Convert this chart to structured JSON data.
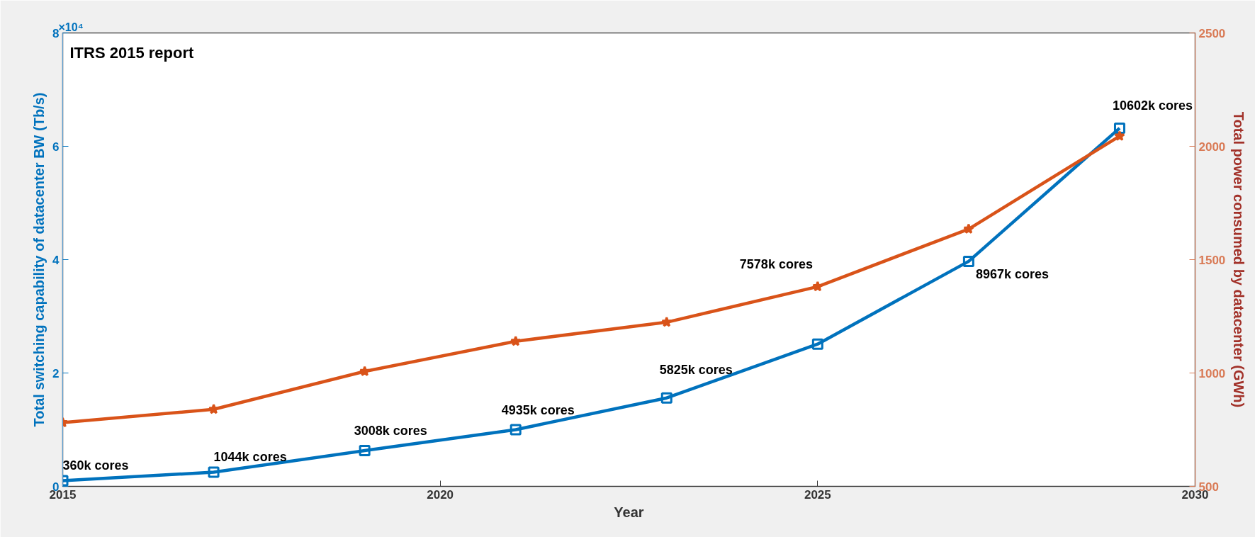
{
  "chart_data": {
    "type": "line",
    "title": "ITRS 2015 report",
    "xlabel": "Year",
    "ylabel": "Total switching capability of datacenter BW (Tb/s)",
    "y2label": "Total power consumed by datacenter (GWh)",
    "x": [
      2015,
      2017,
      2019,
      2021,
      2023,
      2025,
      2027,
      2029
    ],
    "xlim": [
      2015,
      2030
    ],
    "xticks": [
      2015,
      2020,
      2025,
      2030
    ],
    "ylim": [
      0,
      8
    ],
    "yticks": [
      0,
      2,
      4,
      6,
      8
    ],
    "y2lim": [
      500,
      2500
    ],
    "y2ticks": [
      500,
      1000,
      1500,
      2000,
      2500
    ],
    "series": [
      {
        "color": "#0072bd",
        "marker": "square",
        "values": [
          0.1,
          0.25,
          0.63,
          1.0,
          1.56,
          2.51,
          3.97,
          6.32
        ]
      },
      {
        "color": "#d95319",
        "marker": "star",
        "axis": "y2",
        "values": [
          781,
          840,
          1007,
          1140,
          1224,
          1381,
          1635,
          2045
        ]
      }
    ],
    "annotations": [
      "×10⁴",
      {
        "text": "360k cores",
        "x": 2015,
        "y": 0.1
      },
      {
        "text": "1044k cores",
        "x": 2017,
        "y": 0.25
      },
      {
        "text": "3008k cores",
        "x": 2019,
        "y": 0.63
      },
      {
        "text": "4935k cores",
        "x": 2021,
        "y": 1.0
      },
      {
        "text": "5825k cores",
        "x": 2023,
        "y": 1.56
      },
      {
        "text": "7578k cores",
        "x": 2025,
        "y": 3.52
      },
      {
        "text": "8967k cores",
        "x": 2027,
        "y": 3.97
      },
      {
        "text": "10602k cores",
        "x": 2029,
        "y": 6.32
      }
    ],
    "grid": false,
    "line_style": "solid"
  }
}
